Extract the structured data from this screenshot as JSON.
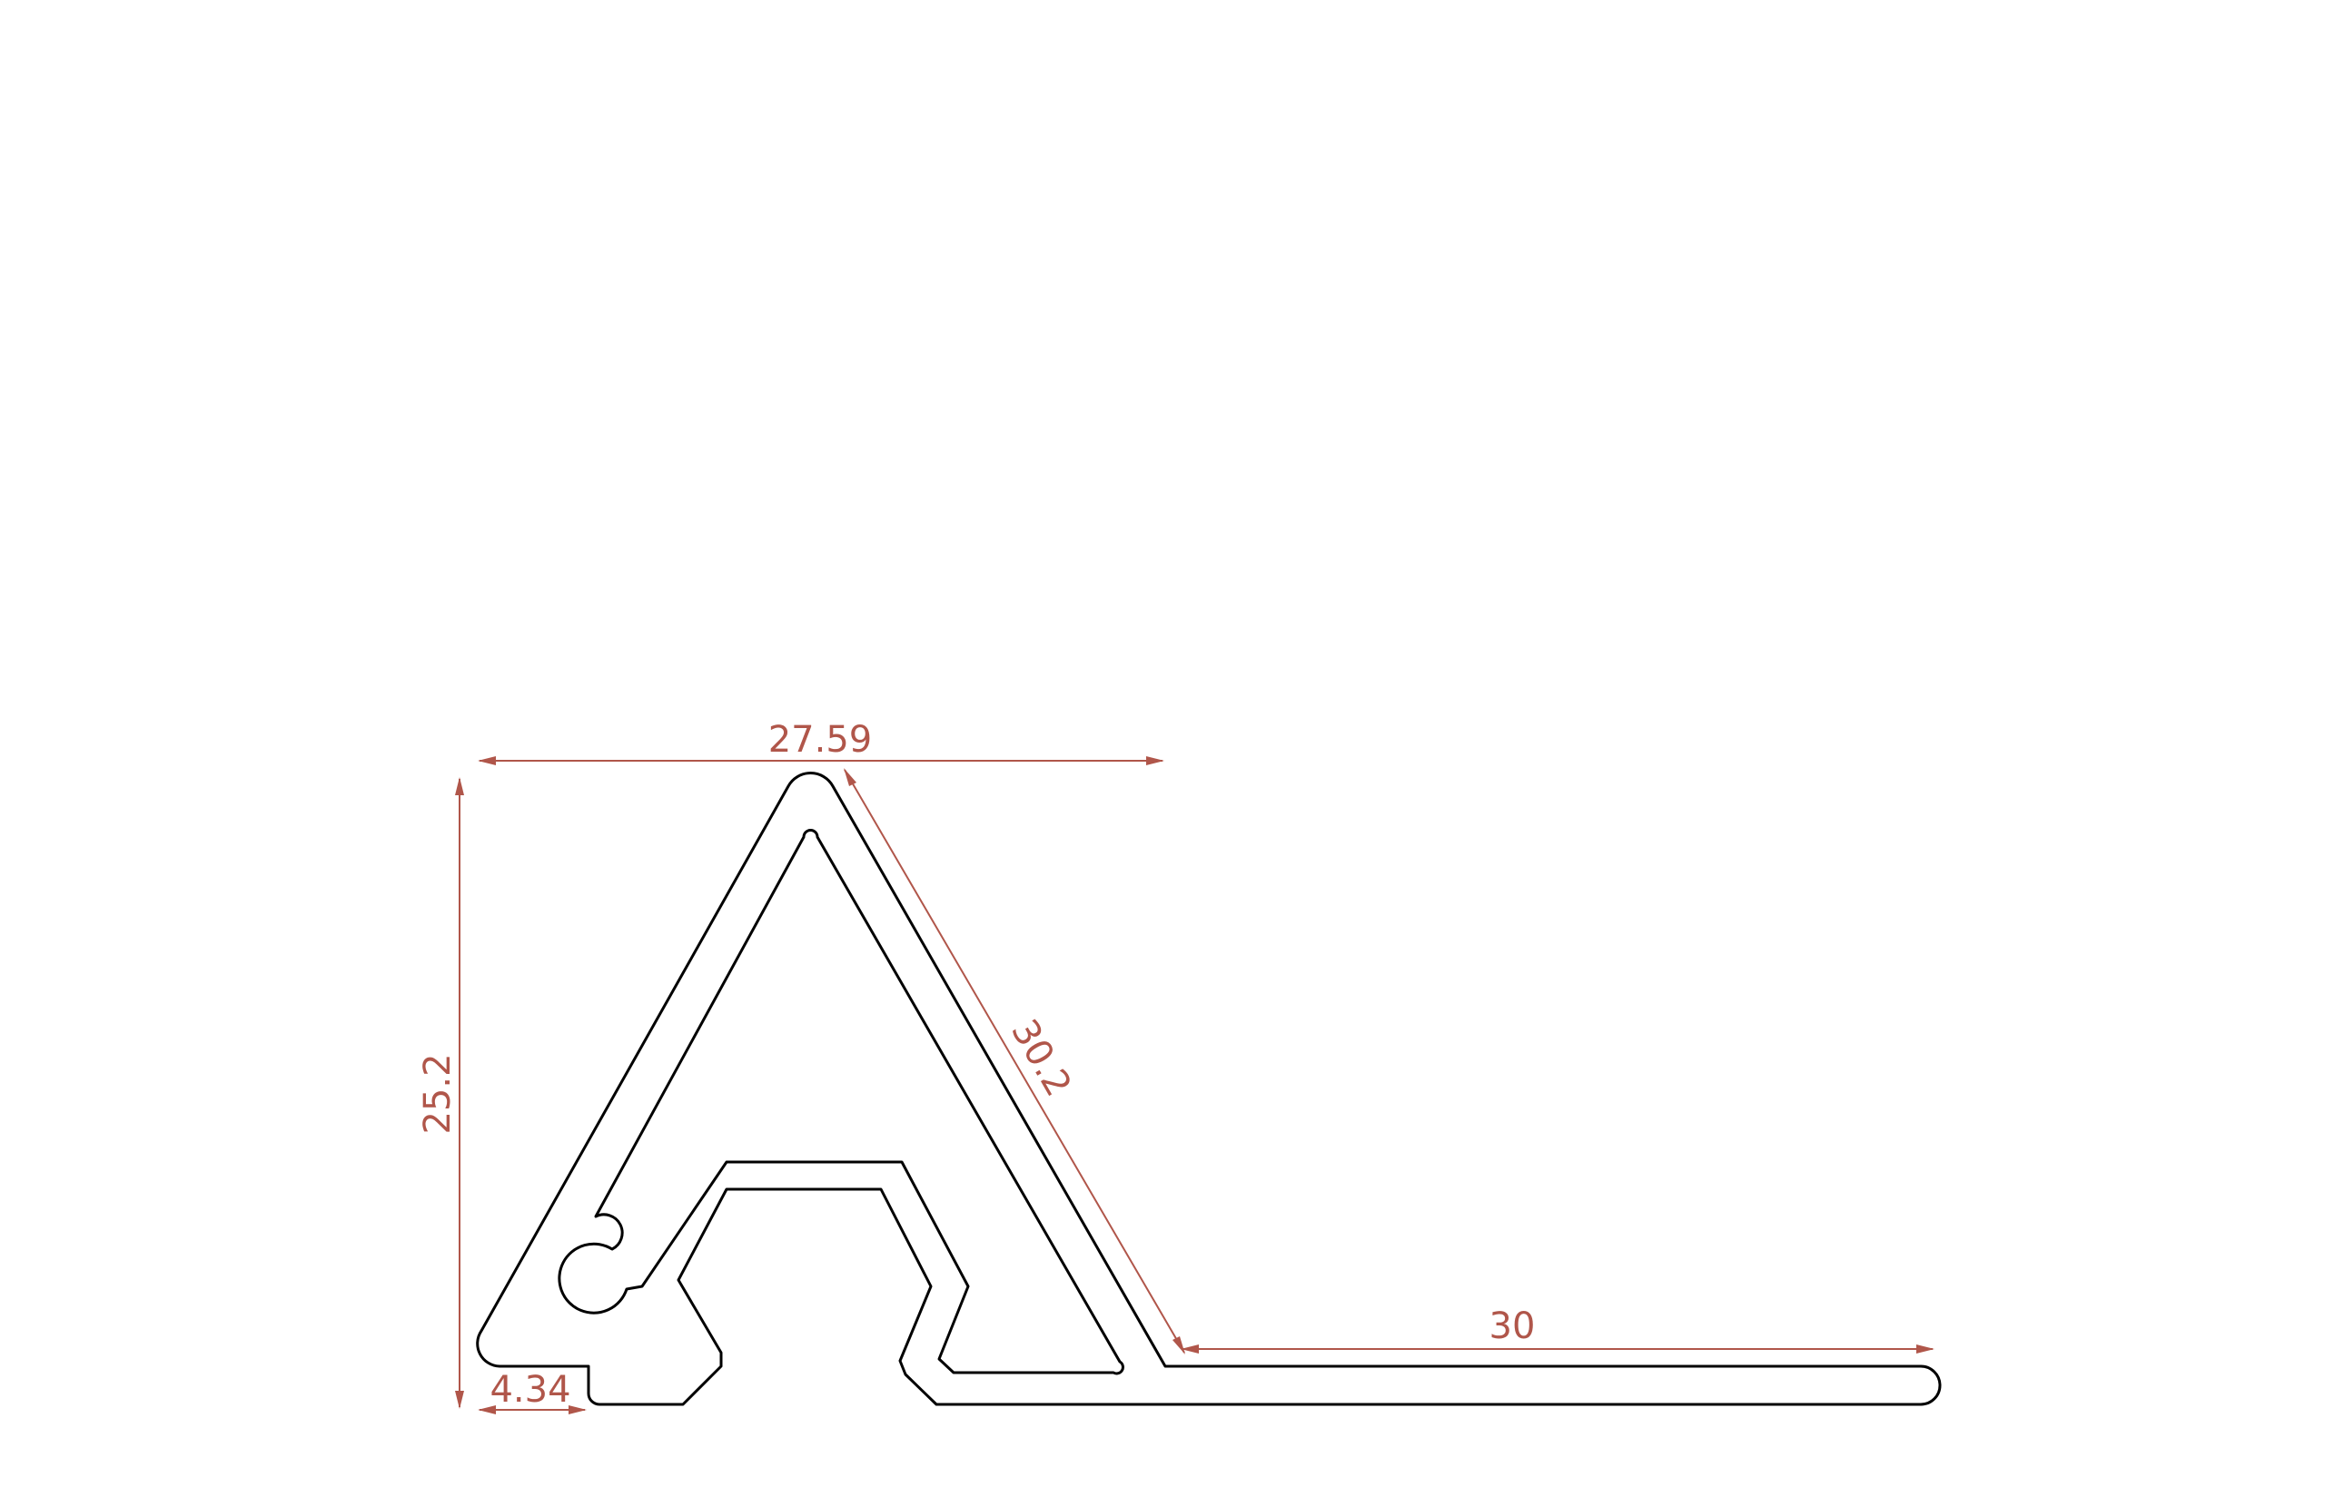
{
  "diagram": {
    "dimensions": {
      "top_width": "27.59",
      "height": "25.2",
      "slope_length": "30.2",
      "flange_length": "30",
      "foot_width": "4.34"
    },
    "colors": {
      "profile_stroke": "#000000",
      "dimension": "#b0564a",
      "background": "#ffffff"
    }
  }
}
